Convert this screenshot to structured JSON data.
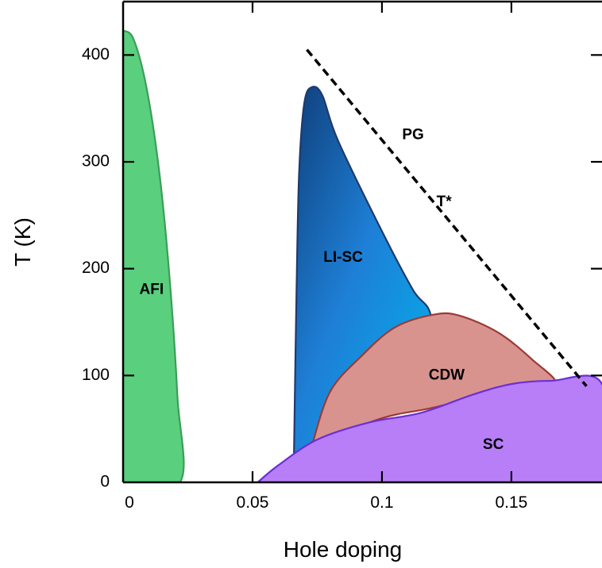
{
  "chart_data": {
    "type": "area",
    "xlabel": "Hole doping",
    "ylabel": "T (K)",
    "xlim": [
      0,
      0.185
    ],
    "ylim": [
      0,
      450
    ],
    "x_ticks": [
      0,
      0.05,
      0.1,
      0.15
    ],
    "x_tick_labels": [
      "0",
      "0.05",
      "0.1",
      "0.15"
    ],
    "y_ticks": [
      0,
      100,
      200,
      300,
      400
    ],
    "y_tick_labels": [
      "0",
      "100",
      "200",
      "300",
      "400"
    ],
    "grid": false,
    "regions": [
      {
        "label": "AFI",
        "color": "#5acf7e",
        "stroke": "#3a9e58",
        "label_at": [
          0.011,
          180
        ],
        "boundary": [
          [
            0,
            423
          ],
          [
            0.004,
            415
          ],
          [
            0.009,
            370
          ],
          [
            0.014,
            290
          ],
          [
            0.018,
            190
          ],
          [
            0.021,
            80
          ],
          [
            0.022,
            0
          ],
          [
            0,
            0
          ]
        ]
      },
      {
        "label": "LI-SC",
        "color": "#1e82d8",
        "stroke": "#1f3a6e",
        "label_at": [
          0.085,
          210
        ],
        "boundary": [
          [
            0.066,
            25
          ],
          [
            0.067,
            180
          ],
          [
            0.068,
            290
          ],
          [
            0.07,
            355
          ],
          [
            0.073,
            370
          ],
          [
            0.077,
            362
          ],
          [
            0.083,
            320
          ],
          [
            0.1,
            235
          ],
          [
            0.112,
            180
          ],
          [
            0.119,
            155
          ],
          [
            0.12,
            90
          ],
          [
            0.066,
            25
          ]
        ]
      },
      {
        "label": "CDW",
        "color": "#d9938f",
        "stroke": "#9c3a35",
        "label_at": [
          0.125,
          100
        ],
        "boundary": [
          [
            0.073,
            35
          ],
          [
            0.08,
            85
          ],
          [
            0.092,
            118
          ],
          [
            0.105,
            145
          ],
          [
            0.12,
            157
          ],
          [
            0.13,
            156
          ],
          [
            0.145,
            140
          ],
          [
            0.158,
            115
          ],
          [
            0.167,
            92
          ],
          [
            0.15,
            88
          ],
          [
            0.12,
            70
          ],
          [
            0.1,
            60
          ],
          [
            0.073,
            35
          ]
        ]
      },
      {
        "label": "SC",
        "color": "#b87ef8",
        "stroke": "#6b2fd6",
        "label_at": [
          0.143,
          35
        ],
        "boundary": [
          [
            0.052,
            0
          ],
          [
            0.06,
            16
          ],
          [
            0.075,
            40
          ],
          [
            0.095,
            56
          ],
          [
            0.115,
            65
          ],
          [
            0.135,
            82
          ],
          [
            0.15,
            92
          ],
          [
            0.165,
            95
          ],
          [
            0.185,
            92
          ],
          [
            0.185,
            0
          ],
          [
            0.052,
            0
          ]
        ]
      }
    ],
    "lines": [
      {
        "label": "T*",
        "style": "dashed",
        "color": "#000000",
        "points": [
          [
            0.071,
            405
          ],
          [
            0.179,
            90
          ]
        ],
        "label_at": [
          0.124,
          262
        ]
      }
    ],
    "annotations": [
      {
        "text": "PG",
        "at": [
          0.112,
          325
        ]
      }
    ]
  }
}
